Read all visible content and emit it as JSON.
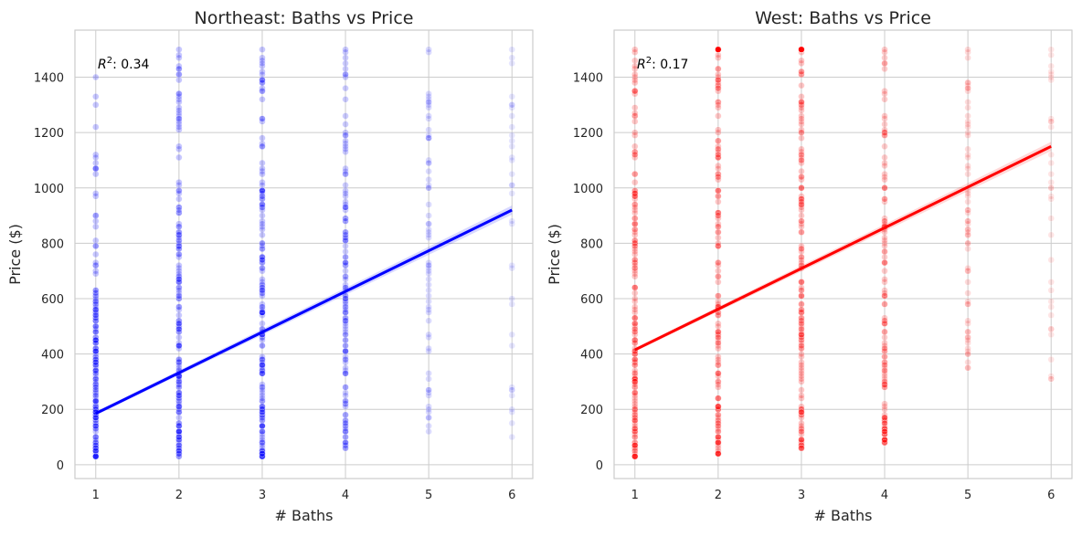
{
  "chart_data": [
    {
      "type": "scatter",
      "title": "Northeast: Baths vs Price",
      "xlabel": "# Baths",
      "ylabel": "Price ($)",
      "xlim": [
        0.75,
        6.25
      ],
      "ylim": [
        -50,
        1570
      ],
      "xticks": [
        1,
        2,
        3,
        4,
        5,
        6
      ],
      "yticks": [
        0,
        200,
        400,
        600,
        800,
        1000,
        1200,
        1400
      ],
      "grid": true,
      "annotation": {
        "prefix": "R",
        "exponent": "2",
        "text": ": 0.34"
      },
      "point_color": "#0000ff",
      "line_color": "#0000ff",
      "scatter": [
        {
          "x": 1,
          "min": 25,
          "max": 1400,
          "dense_max": 620,
          "density": "high"
        },
        {
          "x": 2,
          "min": 25,
          "max": 1500,
          "dense_max": 1000,
          "density": "high"
        },
        {
          "x": 3,
          "min": 30,
          "max": 1500,
          "dense_max": 1000,
          "density": "high"
        },
        {
          "x": 4,
          "min": 60,
          "max": 1500,
          "dense_max": 1000,
          "density": "medium"
        },
        {
          "x": 5,
          "min": 120,
          "max": 1500,
          "dense_max": 1000,
          "density": "low"
        },
        {
          "x": 6,
          "min": 100,
          "max": 1500,
          "dense_max": 1000,
          "density": "sparse"
        }
      ],
      "regression": {
        "x": [
          1,
          6
        ],
        "y": [
          185,
          920
        ]
      }
    },
    {
      "type": "scatter",
      "title": "West: Baths vs Price",
      "xlabel": "# Baths",
      "ylabel": "Price ($)",
      "xlim": [
        0.75,
        6.25
      ],
      "ylim": [
        -50,
        1570
      ],
      "xticks": [
        1,
        2,
        3,
        4,
        5,
        6
      ],
      "yticks": [
        0,
        200,
        400,
        600,
        800,
        1000,
        1200,
        1400
      ],
      "grid": true,
      "annotation": {
        "prefix": "R",
        "exponent": "2",
        "text": ": 0.17"
      },
      "point_color": "#ff0000",
      "line_color": "#ff0000",
      "scatter": [
        {
          "x": 1,
          "min": 25,
          "max": 1500,
          "dense_max": 1000,
          "density": "high"
        },
        {
          "x": 2,
          "min": 35,
          "max": 1500,
          "dense_max": 1500,
          "density": "high"
        },
        {
          "x": 3,
          "min": 60,
          "max": 1500,
          "dense_max": 1500,
          "density": "high"
        },
        {
          "x": 4,
          "min": 80,
          "max": 1500,
          "dense_max": 1000,
          "density": "medium"
        },
        {
          "x": 5,
          "min": 350,
          "max": 1500,
          "dense_max": 1000,
          "density": "low"
        },
        {
          "x": 6,
          "min": 310,
          "max": 1500,
          "dense_max": 1000,
          "density": "sparse"
        }
      ],
      "regression": {
        "x": [
          1,
          6
        ],
        "y": [
          415,
          1150
        ]
      }
    }
  ]
}
